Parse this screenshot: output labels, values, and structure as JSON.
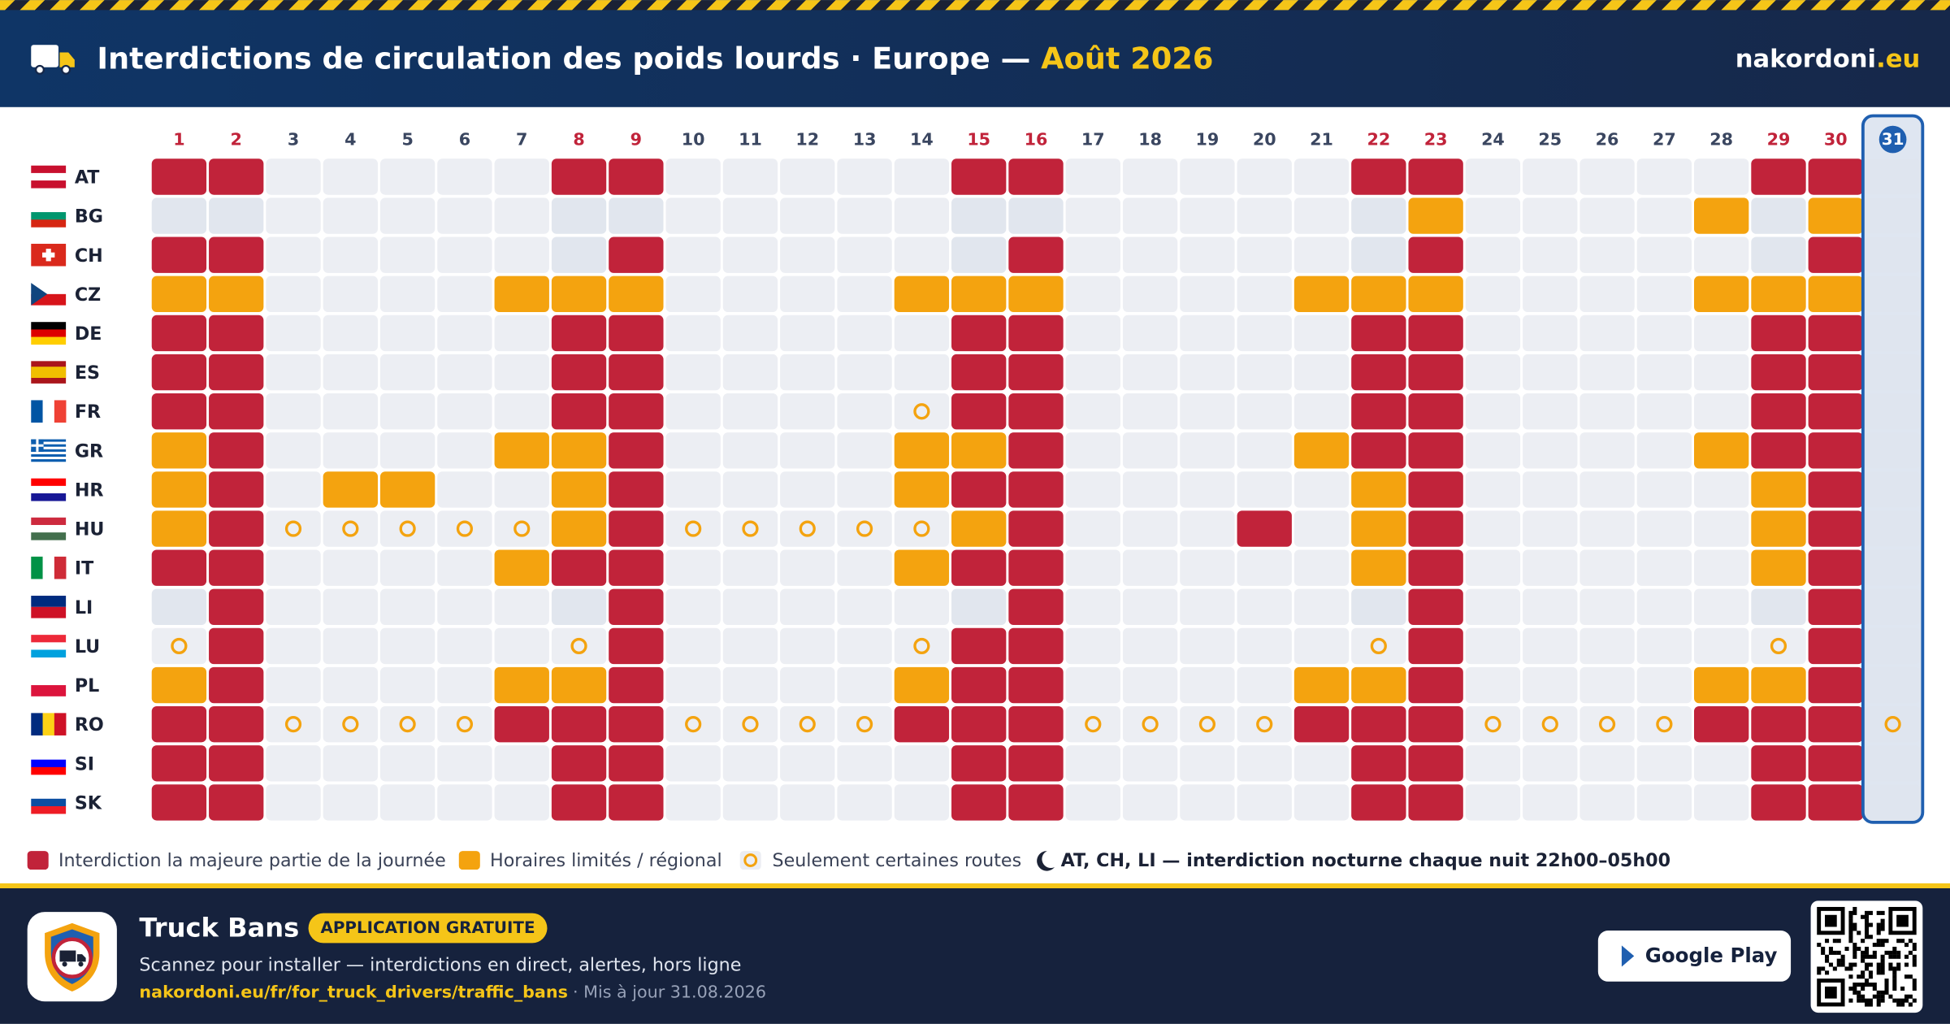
{
  "header": {
    "title": "Interdictions de circulation des poids lourds · Europe —",
    "title_highlight": "Août 2026",
    "brand": "nakordoni",
    "brand_tld": ".eu"
  },
  "calendar": {
    "days": [
      {
        "label": 1,
        "weekend": true
      },
      {
        "label": 2,
        "weekend": true
      },
      {
        "label": 3
      },
      {
        "label": 4
      },
      {
        "label": 5
      },
      {
        "label": 6
      },
      {
        "label": 7
      },
      {
        "label": 8,
        "weekend": true
      },
      {
        "label": 9,
        "weekend": true
      },
      {
        "label": 10
      },
      {
        "label": 11
      },
      {
        "label": 12
      },
      {
        "label": 13
      },
      {
        "label": 14
      },
      {
        "label": 15,
        "weekend": true
      },
      {
        "label": 16,
        "weekend": true
      },
      {
        "label": 17
      },
      {
        "label": 18
      },
      {
        "label": 19
      },
      {
        "label": 20
      },
      {
        "label": 21
      },
      {
        "label": 22,
        "weekend": true
      },
      {
        "label": 23,
        "weekend": true
      },
      {
        "label": 24
      },
      {
        "label": 25
      },
      {
        "label": 26
      },
      {
        "label": 27
      },
      {
        "label": 28
      },
      {
        "label": 29,
        "weekend": true
      },
      {
        "label": 30,
        "weekend": true
      },
      {
        "label": 31,
        "current": true
      }
    ],
    "cell_codes": {
      "R": "ban",
      "O": "limited",
      "C": "routes",
      "s": "weekend",
      ".": "none"
    },
    "rows": [
      {
        "code": "AT",
        "cells": "RR.....RR.....RR.....RR.....RR."
      },
      {
        "code": "BG",
        "cells": "ss.....ss.....ss.....sO....OsO."
      },
      {
        "code": "CH",
        "cells": "RR.....sR.....sR.....sR.....sR."
      },
      {
        "code": "CZ",
        "cells": "OO....OOO....OOO....OOO....OOO."
      },
      {
        "code": "DE",
        "cells": "RR.....RR.....RR.....RR.....RR."
      },
      {
        "code": "ES",
        "cells": "RR.....RR.....RR.....RR.....RR."
      },
      {
        "code": "FR",
        "cells": "RR.....RR....CRR.....RR.....RR."
      },
      {
        "code": "GR",
        "cells": "OR....OOR....OOR....ORR....ORR."
      },
      {
        "code": "HR",
        "cells": "OR.OO..OR....ORR.....OR.....OR."
      },
      {
        "code": "HU",
        "cells": "ORCCCCCORCCCCCOR...R.OR.....OR."
      },
      {
        "code": "IT",
        "cells": "RR....ORR....ORR.....OR.....OR."
      },
      {
        "code": "LI",
        "cells": "sR.....sR.....sR.....sR.....sR."
      },
      {
        "code": "LU",
        "cells": "CR.....CR....CRR.....CR.....CR."
      },
      {
        "code": "PL",
        "cells": "OR....OOR....ORR....OOR....OOR."
      },
      {
        "code": "RO",
        "cells": "RRCCCCRRRCCCCRRRCCCCRRRCCCCRRRC"
      },
      {
        "code": "SI",
        "cells": "RR.....RR.....RR.....RR.....RR."
      },
      {
        "code": "SK",
        "cells": "RR.....RR.....RR.....RR.....RR."
      }
    ]
  },
  "legend": {
    "ban": "Interdiction la majeure partie de la journée",
    "limited": "Horaires limités / régional",
    "routes": "Seulement certaines routes",
    "night": "AT, CH, LI — interdiction nocturne chaque nuit 22h00–05h00"
  },
  "footer": {
    "app_name": "Truck Bans",
    "badge": "APPLICATION GRATUITE",
    "subtitle": "Scannez pour installer — interdictions en direct, alertes, hors ligne",
    "link": "nakordoni.eu/fr/for_truck_drivers/traffic_bans",
    "updated": "· Mis à jour 31.08.2026",
    "store_button": "Google Play"
  }
}
